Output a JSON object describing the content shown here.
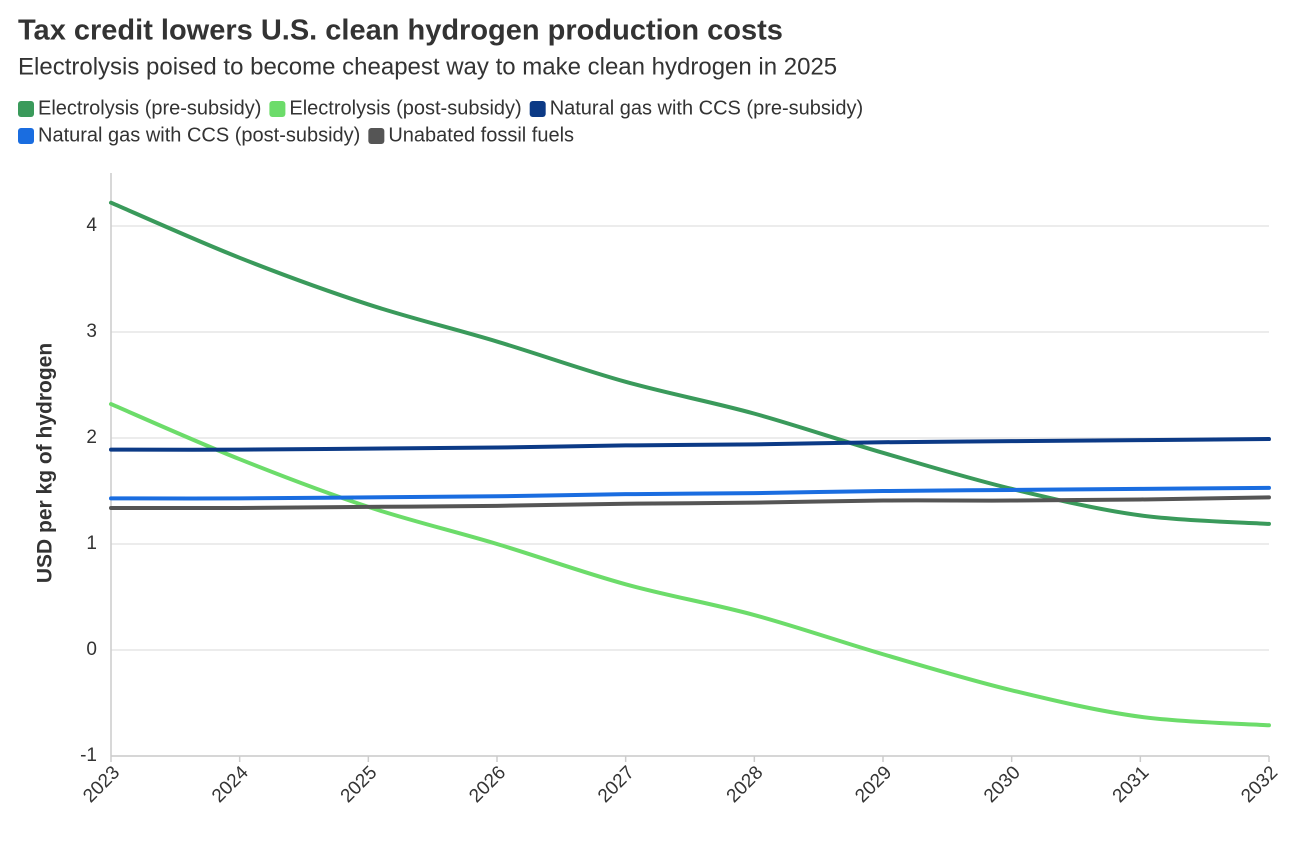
{
  "chart_data": {
    "type": "line",
    "title": "Tax credit lowers U.S. clean hydrogen production costs",
    "subtitle": "Electrolysis poised to become cheapest way to make clean hydrogen in 2025",
    "y_label": "USD per kg of hydrogen",
    "x": [
      2023,
      2024,
      2025,
      2026,
      2027,
      2028,
      2029,
      2030,
      2031,
      2032
    ],
    "xlim": [
      2023,
      2032
    ],
    "xticks": [
      2023,
      2024,
      2025,
      2026,
      2027,
      2028,
      2029,
      2030,
      2031,
      2032
    ],
    "ylim": [
      -1,
      4.5
    ],
    "yticks": [
      -1,
      0,
      1,
      2,
      3,
      4
    ],
    "grid": true,
    "legend": "top-left",
    "series": [
      {
        "name": "Electrolysis (pre-subsidy)",
        "color": "#3a9a5b",
        "values": [
          4.22,
          3.7,
          3.26,
          2.91,
          2.53,
          2.23,
          1.86,
          1.52,
          1.27,
          1.19
        ]
      },
      {
        "name": "Electrolysis (post-subsidy)",
        "color": "#6cdc6a",
        "values": [
          2.32,
          1.8,
          1.35,
          1.0,
          0.62,
          0.33,
          -0.04,
          -0.38,
          -0.63,
          -0.71
        ]
      },
      {
        "name": "Natural gas with CCS (pre-subsidy)",
        "color": "#0c3a86",
        "values": [
          1.89,
          1.89,
          1.9,
          1.91,
          1.93,
          1.94,
          1.96,
          1.97,
          1.98,
          1.99
        ]
      },
      {
        "name": "Natural gas with CCS (post-subsidy)",
        "color": "#1a6de0",
        "values": [
          1.43,
          1.43,
          1.44,
          1.45,
          1.47,
          1.48,
          1.5,
          1.51,
          1.52,
          1.53
        ]
      },
      {
        "name": "Unabated fossil fuels",
        "color": "#555555",
        "values": [
          1.34,
          1.34,
          1.35,
          1.36,
          1.38,
          1.39,
          1.41,
          1.41,
          1.42,
          1.44
        ]
      }
    ]
  }
}
